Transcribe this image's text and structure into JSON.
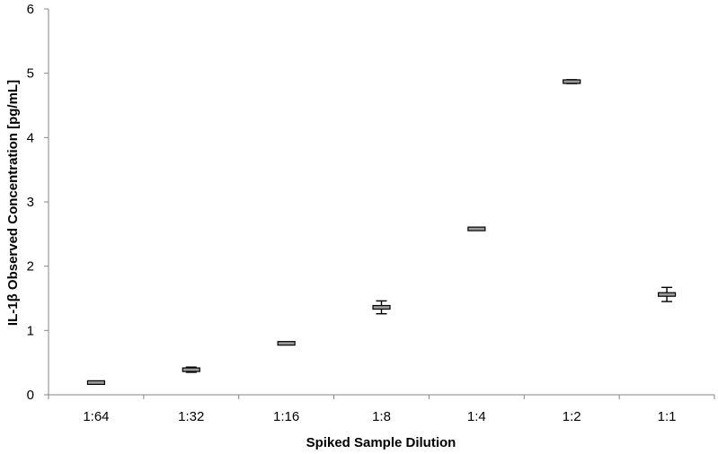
{
  "chart_data": {
    "type": "scatter",
    "title": "",
    "xlabel": "Spiked Sample Dilution",
    "ylabel": "IL-1β Observed Concentration [pg/mL]",
    "categories": [
      "1:64",
      "1:32",
      "1:16",
      "1:8",
      "1:4",
      "1:2",
      "1:1"
    ],
    "series": [
      {
        "values": [
          0.19,
          0.39,
          0.8,
          1.36,
          2.58,
          4.87,
          1.56
        ],
        "error": [
          0.01,
          0.04,
          0.02,
          0.1,
          0.01,
          0.03,
          0.11
        ]
      }
    ],
    "ylim": [
      0,
      6
    ],
    "yticks": [
      "0",
      "1",
      "2",
      "3",
      "4",
      "5",
      "6"
    ],
    "grid": false,
    "legend": "none",
    "marker_fill": "#9a9a9a",
    "marker_stroke": "#000000"
  }
}
